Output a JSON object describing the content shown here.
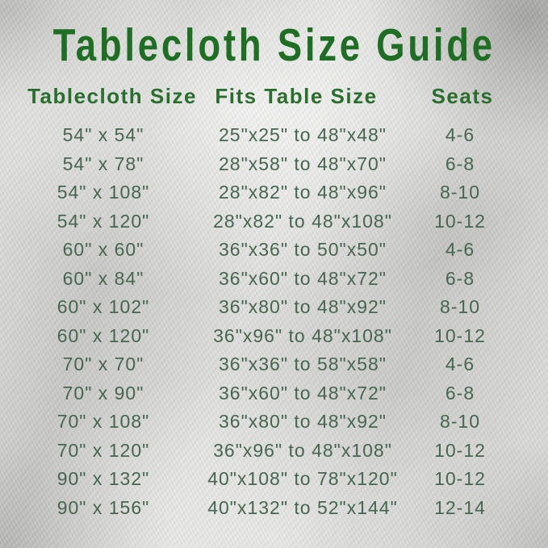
{
  "title": "Tablecloth Size Guide",
  "colors": {
    "title_green": "#1e6e24",
    "header_green": "#2a6e2e",
    "row_green": "#47664f",
    "background_silver": "#cfcfcd"
  },
  "chart_data": {
    "type": "table",
    "title": "Tablecloth Size Guide",
    "columns": [
      "Tablecloth Size",
      "Fits Table Size",
      "Seats"
    ],
    "rows": [
      [
        "54\" x 54\"",
        "25\"x25\" to 48\"x48\"",
        "4-6"
      ],
      [
        "54\" x 78\"",
        "28\"x58\" to 48\"x70\"",
        "6-8"
      ],
      [
        "54\" x 108\"",
        "28\"x82\" to 48\"x96\"",
        "8-10"
      ],
      [
        "54\" x 120\"",
        "28\"x82\" to 48\"x108\"",
        "10-12"
      ],
      [
        "60\" x 60\"",
        "36\"x36\" to 50\"x50\"",
        "4-6"
      ],
      [
        "60\" x 84\"",
        "36\"x60\" to 48\"x72\"",
        "6-8"
      ],
      [
        "60\" x 102\"",
        "36\"x80\" to 48\"x92\"",
        "8-10"
      ],
      [
        "60\" x 120\"",
        "36\"x96\" to 48\"x108\"",
        "10-12"
      ],
      [
        "70\" x 70\"",
        "36\"x36\" to 58\"x58\"",
        "4-6"
      ],
      [
        "70\" x 90\"",
        "36\"x60\" to 48\"x72\"",
        "6-8"
      ],
      [
        "70\" x 108\"",
        "36\"x80\" to 48\"x92\"",
        "8-10"
      ],
      [
        "70\" x 120\"",
        "36\"x96\" to 48\"x108\"",
        "10-12"
      ],
      [
        "90\" x 132\"",
        "40\"x108\" to 78\"x120\"",
        "10-12"
      ],
      [
        "90\" x 156\"",
        "40\"x132\" to 52\"x144\"",
        "12-14"
      ]
    ]
  }
}
